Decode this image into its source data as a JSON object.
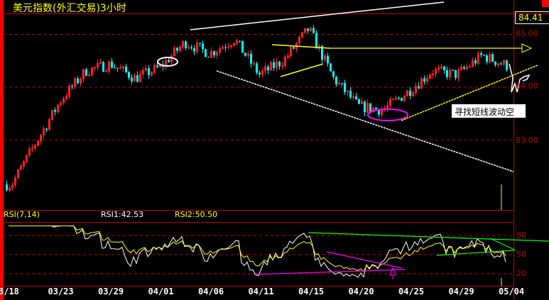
{
  "title": "美元指数(外汇交易)3小时",
  "last_price": "84.41",
  "annotation": "寻找短线波动空",
  "colors": {
    "up": "#ff2020",
    "down": "#00ffff",
    "rsi1": "#ffffff",
    "rsi2": "#ffff00",
    "grid": "#c00000"
  },
  "rsi_panel": {
    "name": "RSI(7,14)",
    "rsi1": "RSI1:42.53",
    "rsi2": "RSI2:50.50"
  },
  "chart_data": [
    {
      "type": "candlestick",
      "title": "美元指数(外汇交易)3小时",
      "y_ticks": [
        "85.00",
        "84.00",
        "83.00"
      ],
      "ylim": [
        82.0,
        85.3
      ],
      "x_ticks": [
        "3/18",
        "03/23",
        "03/29",
        "04/01",
        "04/06",
        "04/11",
        "04/15",
        "04/20",
        "04/25",
        "04/29",
        "05/04"
      ],
      "approx_close_path": [
        82.16,
        82.97,
        83.77,
        84.31,
        84.44,
        84.17,
        84.38,
        84.85,
        84.64,
        84.91,
        84.24,
        84.51,
        85.11,
        84.17,
        83.64,
        83.57,
        83.91,
        84.31,
        84.24,
        84.6,
        84.41
      ],
      "last": 84.41,
      "grid": true
    },
    {
      "type": "line",
      "title": "RSI(7,14)",
      "series": [
        {
          "name": "RSI1",
          "last": 42.53
        },
        {
          "name": "RSI2",
          "last": 50.5
        }
      ],
      "y_ticks": [
        "80",
        "50",
        "20"
      ],
      "ylim": [
        0,
        100
      ]
    }
  ]
}
